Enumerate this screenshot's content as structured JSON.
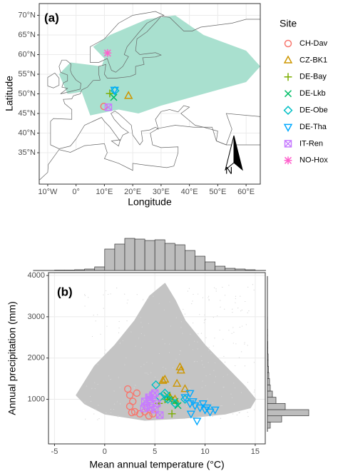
{
  "chart_data": [
    {
      "type": "map",
      "panel_label": "(a)",
      "x_label": "Longitude",
      "y_label": "Latitude",
      "xlim": [
        -13,
        65
      ],
      "ylim": [
        27,
        73
      ],
      "xticks": [
        {
          "value": -10,
          "label": "10°W"
        },
        {
          "value": 0,
          "label": "0°"
        },
        {
          "value": 10,
          "label": "10°E"
        },
        {
          "value": 20,
          "label": "20°E"
        },
        {
          "value": 30,
          "label": "30°E"
        },
        {
          "value": 40,
          "label": "40°E"
        },
        {
          "value": 50,
          "label": "50°E"
        },
        {
          "value": 60,
          "label": "60°E"
        }
      ],
      "yticks": [
        {
          "value": 35,
          "label": "35°N"
        },
        {
          "value": 40,
          "label": "40°N"
        },
        {
          "value": 45,
          "label": "45°N"
        },
        {
          "value": 50,
          "label": "50°N"
        },
        {
          "value": 55,
          "label": "55°N"
        },
        {
          "value": 60,
          "label": "60°N"
        },
        {
          "value": 65,
          "label": "65°N"
        },
        {
          "value": 70,
          "label": "70°N"
        }
      ],
      "grid": true,
      "legend_title": "Site",
      "north_label": "N",
      "range_color": "#a9e0cf",
      "series": [
        {
          "name": "CH-Dav",
          "color": "#F8766D",
          "shape": "circle",
          "x": [
            9.85
          ],
          "y": [
            46.8
          ]
        },
        {
          "name": "CZ-BK1",
          "color": "#CD9600",
          "shape": "triangle",
          "x": [
            18.5
          ],
          "y": [
            49.5
          ]
        },
        {
          "name": "DE-Bay",
          "color": "#7CAE00",
          "shape": "plus",
          "x": [
            11.9
          ],
          "y": [
            50.1
          ]
        },
        {
          "name": "DE-Lkb",
          "color": "#00BE67",
          "shape": "cross",
          "x": [
            13.3
          ],
          "y": [
            49.1
          ]
        },
        {
          "name": "DE-Obe",
          "color": "#00BFC4",
          "shape": "diamond",
          "x": [
            13.7
          ],
          "y": [
            50.8
          ]
        },
        {
          "name": "DE-Tha",
          "color": "#00A9FF",
          "shape": "triangle-down",
          "x": [
            13.6
          ],
          "y": [
            51.0
          ]
        },
        {
          "name": "IT-Ren",
          "color": "#C77CFF",
          "shape": "square-cross",
          "x": [
            11.4
          ],
          "y": [
            46.6
          ]
        },
        {
          "name": "NO-Hox",
          "color": "#FF61CC",
          "shape": "asterisk",
          "x": [
            11.1
          ],
          "y": [
            60.4
          ]
        }
      ]
    },
    {
      "type": "scatter",
      "panel_label": "(b)",
      "x_label": "Mean annual temperature (°C)",
      "y_label": "Annual precipitation (mm)",
      "xlim": [
        -5.6,
        16
      ],
      "ylim": [
        -80,
        4070
      ],
      "xticks": [
        -5,
        0,
        5,
        10,
        15
      ],
      "yticks": [
        1000,
        2000,
        3000,
        4000
      ],
      "grid": true,
      "cloud_color": "#c4c4c4",
      "series": [
        {
          "color": "#F8766D",
          "shape": "circle",
          "x": [
            2.3,
            2.5,
            2.8,
            2.5,
            3.0,
            3.5,
            4.0,
            2.7,
            3.2,
            4.4,
            4.8,
            4.2
          ],
          "y": [
            1250,
            1100,
            950,
            830,
            700,
            650,
            700,
            680,
            1150,
            600,
            650,
            800
          ]
        },
        {
          "color": "#CD9600",
          "shape": "triangle",
          "x": [
            5.8,
            6.0,
            7.5,
            7.6,
            8.0,
            7.2,
            6.5,
            7.0
          ],
          "y": [
            1450,
            1480,
            1780,
            1700,
            1250,
            1380,
            1050,
            1000
          ]
        },
        {
          "color": "#7CAE00",
          "shape": "plus",
          "x": [
            6.7,
            6.0,
            5.4,
            6.5,
            7.2
          ],
          "y": [
            650,
            1000,
            900,
            1050,
            900
          ]
        },
        {
          "color": "#00BE67",
          "shape": "cross",
          "x": [
            6.4,
            7.0,
            6.2,
            7.3
          ],
          "y": [
            1000,
            950,
            1100,
            850
          ]
        },
        {
          "color": "#00BFC4",
          "shape": "diamond",
          "x": [
            5.1,
            6.0,
            6.3,
            7.0,
            8.0,
            5.5
          ],
          "y": [
            1350,
            1150,
            1000,
            900,
            1000,
            1050
          ]
        },
        {
          "color": "#00A9FF",
          "shape": "triangle-down",
          "x": [
            8.5,
            8.0,
            8.5,
            9.0,
            9.5,
            10.0,
            10.5,
            9.2,
            8.8,
            9.8,
            10.2,
            11.0,
            8.6
          ],
          "y": [
            1150,
            1050,
            900,
            850,
            800,
            750,
            700,
            480,
            950,
            900,
            800,
            750,
            650
          ]
        },
        {
          "color": "#C77CFF",
          "shape": "square-cross",
          "x": [
            4.0,
            4.2,
            4.5,
            4.8,
            5.0,
            4.6,
            5.2,
            5.5,
            4.4,
            3.9,
            5.0
          ],
          "y": [
            950,
            850,
            1000,
            1100,
            750,
            800,
            900,
            620,
            1050,
            780,
            1150
          ]
        }
      ]
    },
    {
      "type": "histogram",
      "orientation": "vertical",
      "color": "#bdbdbd",
      "bins": [
        -5,
        -4,
        -3,
        -2,
        -1,
        0,
        1,
        2,
        3,
        4,
        5,
        6,
        7,
        8,
        9,
        10,
        11,
        12,
        13,
        14,
        15
      ],
      "values": [
        0.5,
        0.5,
        1,
        2,
        5,
        30,
        37,
        45,
        44,
        42,
        43,
        38,
        36,
        28,
        20,
        12,
        6,
        3,
        2,
        1
      ]
    },
    {
      "type": "histogram",
      "orientation": "horizontal",
      "color": "#bdbdbd",
      "bins": [
        300,
        450,
        600,
        750,
        900,
        1050,
        1200,
        1350,
        1500,
        1650,
        1800,
        1950,
        2100,
        2250,
        2400,
        2550,
        2700,
        2850,
        3000,
        3150,
        3300,
        3450,
        3600,
        3750,
        3900
      ],
      "values": [
        4,
        20,
        58,
        25,
        12,
        7,
        4,
        3,
        2,
        1.5,
        1,
        1,
        0.5,
        0.5,
        0.3,
        0.3,
        0.2,
        0.2,
        0.1,
        0.1,
        0.1,
        0.1,
        0.1,
        0.1
      ]
    }
  ]
}
